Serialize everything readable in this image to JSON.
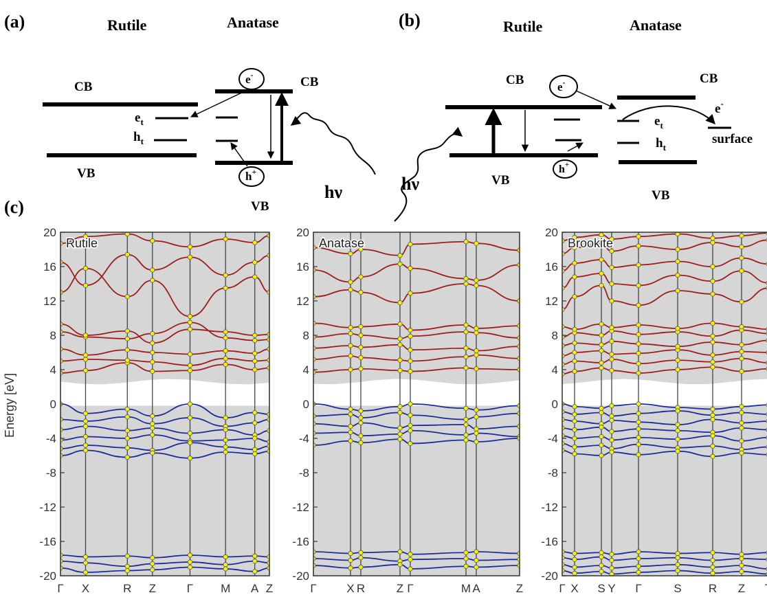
{
  "panel_a": {
    "label": "(a)",
    "rutile": "Rutile",
    "anatase": "Anatase",
    "rutile_cb": "CB",
    "rutile_vb": "VB",
    "anatase_cb": "CB",
    "anatase_vb": "VB",
    "et": "e",
    "et_sub": "t",
    "ht": "h",
    "ht_sub": "t",
    "electron": "e",
    "electron_sup": "-",
    "hole": "h",
    "hole_sup": "+",
    "photon": "hν"
  },
  "panel_b": {
    "label": "(b)",
    "rutile": "Rutile",
    "anatase": "Anatase",
    "rutile_cb": "CB",
    "rutile_vb": "VB",
    "anatase_cb": "CB",
    "anatase_vb": "VB",
    "et": "e",
    "et_sub": "t",
    "ht": "h",
    "ht_sub": "t",
    "electron": "e",
    "electron_sup": "-",
    "hole": "h",
    "hole_sup": "+",
    "surface_e": "e",
    "surface_e_sup": "-",
    "surface": "surface",
    "photon": "hν"
  },
  "panel_c": {
    "label": "(c)",
    "ylabel": "Energy [eV]",
    "colors": {
      "conduction": "#a01c1c",
      "valence": "#1c2a9c",
      "points": "#f2f20a",
      "shade": "#d6d6d6"
    }
  },
  "chart_data": [
    {
      "type": "line",
      "title": "Rutile",
      "ylabel": "Energy [eV]",
      "ylim": [
        -20,
        20
      ],
      "yticks": [
        "20",
        "16",
        "12",
        "8",
        "4",
        "0",
        "-4",
        "-8",
        "-12",
        "-16",
        "-20"
      ],
      "kpath": [
        "Γ",
        "X",
        "R",
        "Z",
        "Γ",
        "M",
        "A",
        "Z"
      ],
      "kpos": [
        0,
        0.12,
        0.32,
        0.44,
        0.62,
        0.79,
        0.93,
        1.0
      ],
      "series": [
        {
          "band": "conduction",
          "values": [
            3.6,
            3.9,
            4.8,
            3.8,
            3.9,
            4.6,
            4.0,
            4.2
          ]
        },
        {
          "band": "conduction",
          "values": [
            5.0,
            5.2,
            5.1,
            4.9,
            4.5,
            5.3,
            5.0,
            5.1
          ]
        },
        {
          "band": "conduction",
          "values": [
            6.4,
            5.7,
            6.3,
            6.0,
            5.8,
            6.2,
            5.9,
            6.4
          ]
        },
        {
          "band": "conduction",
          "values": [
            8.4,
            7.8,
            7.6,
            8.2,
            9.5,
            7.7,
            7.4,
            7.5
          ]
        },
        {
          "band": "conduction",
          "values": [
            9.3,
            8.0,
            8.5,
            7.1,
            8.7,
            8.4,
            8.0,
            8.1
          ]
        },
        {
          "band": "conduction",
          "values": [
            13.0,
            15.8,
            12.5,
            14.4,
            10.2,
            13.5,
            14.8,
            13.0
          ]
        },
        {
          "band": "conduction",
          "values": [
            16.5,
            13.8,
            17.4,
            15.6,
            17.1,
            15.0,
            16.5,
            17.3
          ]
        },
        {
          "band": "conduction",
          "values": [
            18.7,
            19.5,
            19.8,
            19.0,
            18.3,
            19.2,
            18.8,
            19.6
          ]
        },
        {
          "band": "valence",
          "values": [
            0.0,
            -1.1,
            -0.6,
            -1.4,
            0.0,
            -1.6,
            -1.0,
            -1.2
          ]
        },
        {
          "band": "valence",
          "values": [
            -1.8,
            -2.0,
            -1.5,
            -2.3,
            -1.6,
            -2.6,
            -2.2,
            -1.8
          ]
        },
        {
          "band": "valence",
          "values": [
            -3.0,
            -2.6,
            -3.1,
            -2.8,
            -3.4,
            -3.0,
            -3.6,
            -3.1
          ]
        },
        {
          "band": "valence",
          "values": [
            -4.2,
            -3.8,
            -4.0,
            -3.6,
            -4.3,
            -4.2,
            -4.0,
            -4.4
          ]
        },
        {
          "band": "valence",
          "values": [
            -5.2,
            -4.8,
            -5.1,
            -5.4,
            -4.5,
            -5.0,
            -5.3,
            -4.9
          ]
        },
        {
          "band": "valence",
          "values": [
            -6.0,
            -5.4,
            -6.2,
            -5.7,
            -6.3,
            -5.6,
            -5.8,
            -5.5
          ]
        },
        {
          "band": "valence",
          "values": [
            -17.6,
            -17.8,
            -17.7,
            -17.9,
            -17.6,
            -17.8,
            -17.7,
            -17.8
          ]
        },
        {
          "band": "valence",
          "values": [
            -18.3,
            -18.5,
            -18.9,
            -18.6,
            -18.4,
            -18.7,
            -18.3,
            -18.5
          ]
        },
        {
          "band": "valence",
          "values": [
            -19.1,
            -19.6,
            -19.4,
            -19.3,
            -19.0,
            -19.2,
            -19.5,
            -19.1
          ]
        }
      ]
    },
    {
      "type": "line",
      "title": "Anatase",
      "ylabel": "",
      "ylim": [
        -20,
        20
      ],
      "yticks": [
        "20",
        "16",
        "12",
        "8",
        "4",
        "0",
        "-4",
        "-8",
        "-12",
        "-16",
        "-20"
      ],
      "kpath": [
        "Γ",
        "X",
        "R",
        "Z",
        "Γ",
        "M",
        "A",
        "Z"
      ],
      "kpos": [
        0,
        0.18,
        0.23,
        0.42,
        0.47,
        0.74,
        0.79,
        1.0
      ],
      "series": [
        {
          "band": "conduction",
          "values": [
            3.7,
            4.0,
            4.1,
            3.9,
            3.8,
            4.2,
            4.1,
            4.0
          ]
        },
        {
          "band": "conduction",
          "values": [
            5.2,
            5.6,
            5.4,
            5.1,
            5.0,
            5.5,
            5.7,
            5.3
          ]
        },
        {
          "band": "conduction",
          "values": [
            6.5,
            6.8,
            6.6,
            6.9,
            6.3,
            6.5,
            6.2,
            6.7
          ]
        },
        {
          "band": "conduction",
          "values": [
            7.8,
            8.2,
            8.0,
            7.6,
            7.9,
            8.4,
            8.3,
            7.7
          ]
        },
        {
          "band": "conduction",
          "values": [
            9.4,
            8.9,
            9.0,
            9.3,
            8.6,
            9.2,
            8.8,
            9.1
          ]
        },
        {
          "band": "conduction",
          "values": [
            12.5,
            13.3,
            13.0,
            11.8,
            12.9,
            14.0,
            13.8,
            12.0
          ]
        },
        {
          "band": "conduction",
          "values": [
            15.6,
            14.2,
            14.8,
            16.3,
            15.8,
            14.6,
            14.4,
            16.2
          ]
        },
        {
          "band": "conduction",
          "values": [
            18.2,
            17.5,
            18.0,
            17.3,
            18.6,
            18.9,
            18.7,
            17.9
          ]
        },
        {
          "band": "valence",
          "values": [
            0.0,
            -0.6,
            -0.8,
            -0.3,
            0.0,
            -0.5,
            -0.7,
            -0.2
          ]
        },
        {
          "band": "valence",
          "values": [
            -1.4,
            -1.2,
            -1.6,
            -1.0,
            -1.3,
            -1.8,
            -1.5,
            -1.1
          ]
        },
        {
          "band": "valence",
          "values": [
            -2.3,
            -2.6,
            -2.2,
            -2.8,
            -2.5,
            -2.4,
            -2.9,
            -2.6
          ]
        },
        {
          "band": "valence",
          "values": [
            -3.4,
            -3.3,
            -3.7,
            -3.5,
            -3.1,
            -3.6,
            -3.4,
            -3.8
          ]
        },
        {
          "band": "valence",
          "values": [
            -4.8,
            -4.3,
            -4.5,
            -4.1,
            -4.6,
            -4.2,
            -4.4,
            -4.0
          ]
        },
        {
          "band": "valence",
          "values": [
            -17.2,
            -17.4,
            -17.3,
            -17.2,
            -17.5,
            -17.3,
            -17.2,
            -17.4
          ]
        },
        {
          "band": "valence",
          "values": [
            -18.0,
            -18.2,
            -17.9,
            -18.3,
            -18.1,
            -18.0,
            -18.2,
            -18.1
          ]
        },
        {
          "band": "valence",
          "values": [
            -18.8,
            -19.1,
            -19.0,
            -18.7,
            -19.2,
            -18.9,
            -19.0,
            -18.8
          ]
        }
      ]
    },
    {
      "type": "line",
      "title": "Brookite",
      "ylabel": "",
      "ylim": [
        -20,
        20
      ],
      "yticks": [
        "20",
        "16",
        "12",
        "8",
        "4",
        "0",
        "-4",
        "-8",
        "-12",
        "-16",
        "-20"
      ],
      "kpath": [
        "Γ",
        "X",
        "S",
        "Y",
        "Γ",
        "S",
        "R",
        "Z",
        "T"
      ],
      "kpos": [
        0,
        0.06,
        0.19,
        0.24,
        0.37,
        0.56,
        0.73,
        0.87,
        1.0
      ],
      "series": [
        {
          "band": "conduction",
          "values": [
            3.5,
            3.8,
            4.2,
            3.9,
            3.6,
            4.0,
            4.3,
            3.8,
            4.1
          ]
        },
        {
          "band": "conduction",
          "values": [
            4.6,
            5.0,
            4.8,
            5.2,
            4.7,
            5.1,
            4.9,
            5.3,
            4.8
          ]
        },
        {
          "band": "conduction",
          "values": [
            5.6,
            6.0,
            6.2,
            5.8,
            5.9,
            6.3,
            5.7,
            6.1,
            6.0
          ]
        },
        {
          "band": "conduction",
          "values": [
            6.8,
            7.1,
            6.9,
            7.3,
            7.0,
            6.7,
            7.2,
            6.9,
            7.4
          ]
        },
        {
          "band": "conduction",
          "values": [
            7.8,
            8.3,
            8.0,
            8.5,
            8.1,
            8.4,
            7.9,
            8.6,
            8.2
          ]
        },
        {
          "band": "conduction",
          "values": [
            9.0,
            8.7,
            9.3,
            8.9,
            9.2,
            8.8,
            9.4,
            9.0,
            8.7
          ]
        },
        {
          "band": "conduction",
          "values": [
            11.0,
            12.5,
            13.8,
            12.0,
            11.5,
            13.2,
            12.8,
            11.9,
            13.5
          ]
        },
        {
          "band": "conduction",
          "values": [
            13.5,
            14.8,
            15.2,
            14.0,
            13.8,
            15.0,
            14.3,
            15.5,
            14.1
          ]
        },
        {
          "band": "conduction",
          "values": [
            15.5,
            16.4,
            16.8,
            15.9,
            16.2,
            16.6,
            16.0,
            17.0,
            16.3
          ]
        },
        {
          "band": "conduction",
          "values": [
            17.5,
            18.2,
            18.6,
            17.8,
            18.4,
            18.0,
            18.8,
            18.3,
            19.1
          ]
        },
        {
          "band": "conduction",
          "values": [
            19.0,
            19.4,
            19.7,
            19.2,
            19.5,
            19.8,
            19.3,
            19.6,
            19.9
          ]
        },
        {
          "band": "valence",
          "values": [
            0.0,
            -0.3,
            -0.5,
            -0.2,
            0.0,
            -0.4,
            -0.6,
            -0.3,
            -0.1
          ]
        },
        {
          "band": "valence",
          "values": [
            -0.9,
            -1.2,
            -1.0,
            -1.4,
            -1.1,
            -0.8,
            -1.3,
            -1.0,
            -1.2
          ]
        },
        {
          "band": "valence",
          "values": [
            -1.8,
            -2.0,
            -2.3,
            -1.9,
            -2.1,
            -2.4,
            -1.8,
            -2.2,
            -2.0
          ]
        },
        {
          "band": "valence",
          "values": [
            -2.8,
            -3.0,
            -2.7,
            -3.2,
            -2.9,
            -3.1,
            -3.3,
            -2.8,
            -3.0
          ]
        },
        {
          "band": "valence",
          "values": [
            -3.7,
            -4.0,
            -3.8,
            -4.2,
            -3.9,
            -4.1,
            -3.7,
            -4.3,
            -3.9
          ]
        },
        {
          "band": "valence",
          "values": [
            -4.6,
            -5.0,
            -4.8,
            -5.2,
            -4.7,
            -5.1,
            -4.9,
            -5.3,
            -5.0
          ]
        },
        {
          "band": "valence",
          "values": [
            -5.4,
            -5.8,
            -6.0,
            -5.6,
            -5.9,
            -5.5,
            -6.1,
            -5.7,
            -5.9
          ]
        },
        {
          "band": "valence",
          "values": [
            -17.2,
            -17.4,
            -17.3,
            -17.5,
            -17.2,
            -17.4,
            -17.3,
            -17.5,
            -17.3
          ]
        },
        {
          "band": "valence",
          "values": [
            -17.9,
            -18.1,
            -17.8,
            -18.2,
            -18.0,
            -17.9,
            -18.2,
            -18.0,
            -18.1
          ]
        },
        {
          "band": "valence",
          "values": [
            -18.7,
            -19.0,
            -18.8,
            -19.1,
            -18.9,
            -18.7,
            -19.0,
            -18.8,
            -19.2
          ]
        },
        {
          "band": "valence",
          "values": [
            -19.4,
            -19.7,
            -19.5,
            -19.8,
            -19.6,
            -19.4,
            -19.7,
            -19.5,
            -19.8
          ]
        }
      ]
    }
  ]
}
